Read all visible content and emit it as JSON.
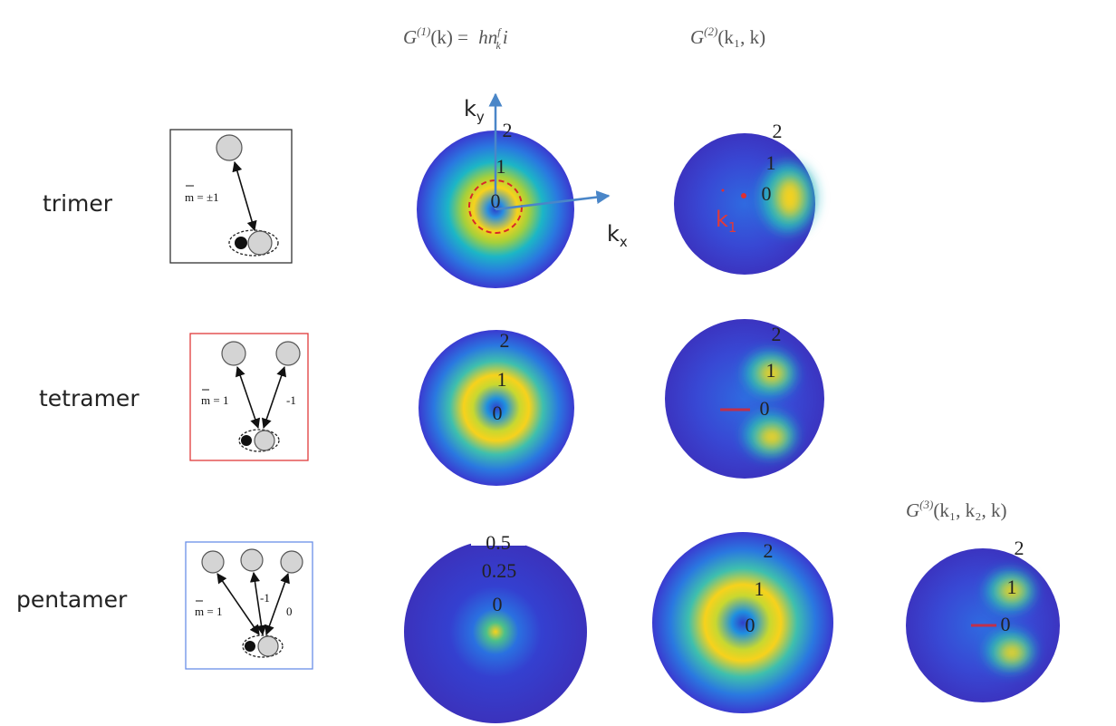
{
  "column_headers": [
    {
      "symbol": "G",
      "order": "(1)",
      "args": "(k)  =  ",
      "expr": "hn",
      "expr_sup": "f",
      "expr_sub": "k",
      "tail": "i"
    },
    {
      "symbol": "G",
      "order": "(2)",
      "args": "(k₁, k)"
    },
    {
      "symbol": "G",
      "order": "(3)",
      "args": "(k₁, k₂, k)"
    }
  ],
  "rows": [
    {
      "label": "trimer",
      "diagram_labels": [
        "m = ±1"
      ],
      "plots": [
        {
          "labels": [
            "2",
            "1",
            "0"
          ],
          "axes": {
            "x": "k",
            "x_sub": "x",
            "y": "k",
            "y_sub": "y"
          }
        },
        {
          "labels": [
            "2",
            "1",
            "0"
          ],
          "marker": {
            "main": "k",
            "sub": "1"
          }
        }
      ]
    },
    {
      "label": "tetramer",
      "diagram_labels": [
        "m = 1",
        "-1"
      ],
      "plots": [
        {
          "labels": [
            "2",
            "1",
            "0"
          ]
        },
        {
          "labels": [
            "2",
            "1",
            "0"
          ]
        }
      ]
    },
    {
      "label": "pentamer",
      "diagram_labels": [
        "m = 1",
        "-1",
        "0"
      ],
      "plots": [
        {
          "labels": [
            "0.5",
            "0.25",
            "0"
          ]
        },
        {
          "labels": [
            "2",
            "1",
            "0"
          ]
        },
        {
          "labels": [
            "2",
            "1",
            "0"
          ]
        }
      ]
    }
  ]
}
